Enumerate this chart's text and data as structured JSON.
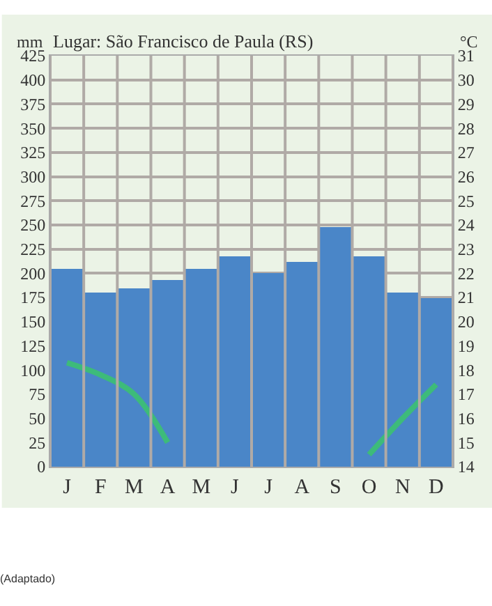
{
  "chart_data": {
    "type": "bar",
    "title": "Lugar: São Francisco de Paula (RS)",
    "ylabel": "mm",
    "y2label": "°C",
    "categories": [
      "J",
      "F",
      "M",
      "A",
      "M",
      "J",
      "J",
      "A",
      "S",
      "O",
      "N",
      "D"
    ],
    "series": [
      {
        "color": "#4a86c8",
        "values": [
          205,
          180,
          185,
          193,
          205,
          218,
          200,
          212,
          248,
          218,
          180,
          175
        ]
      },
      {
        "type": "line",
        "axis": "y2",
        "color": "#3dbb7a",
        "values": [
          18.3,
          17.8,
          17.0,
          15.0,
          null,
          null,
          null,
          null,
          null,
          14.5,
          16.0,
          17.4
        ]
      }
    ],
    "ylim": [
      0,
      425
    ],
    "yticks": [
      0,
      25,
      50,
      75,
      100,
      125,
      150,
      175,
      200,
      225,
      250,
      275,
      300,
      325,
      350,
      375,
      400,
      425
    ],
    "y2lim": [
      14,
      31
    ],
    "y2ticks": [
      14,
      15,
      16,
      17,
      18,
      19,
      20,
      21,
      22,
      23,
      24,
      25,
      26,
      27,
      28,
      29,
      30,
      31
    ],
    "grid": true,
    "legend": false,
    "marker": "none",
    "line_style": "solid",
    "annotations": [
      "(Adaptado)"
    ]
  }
}
